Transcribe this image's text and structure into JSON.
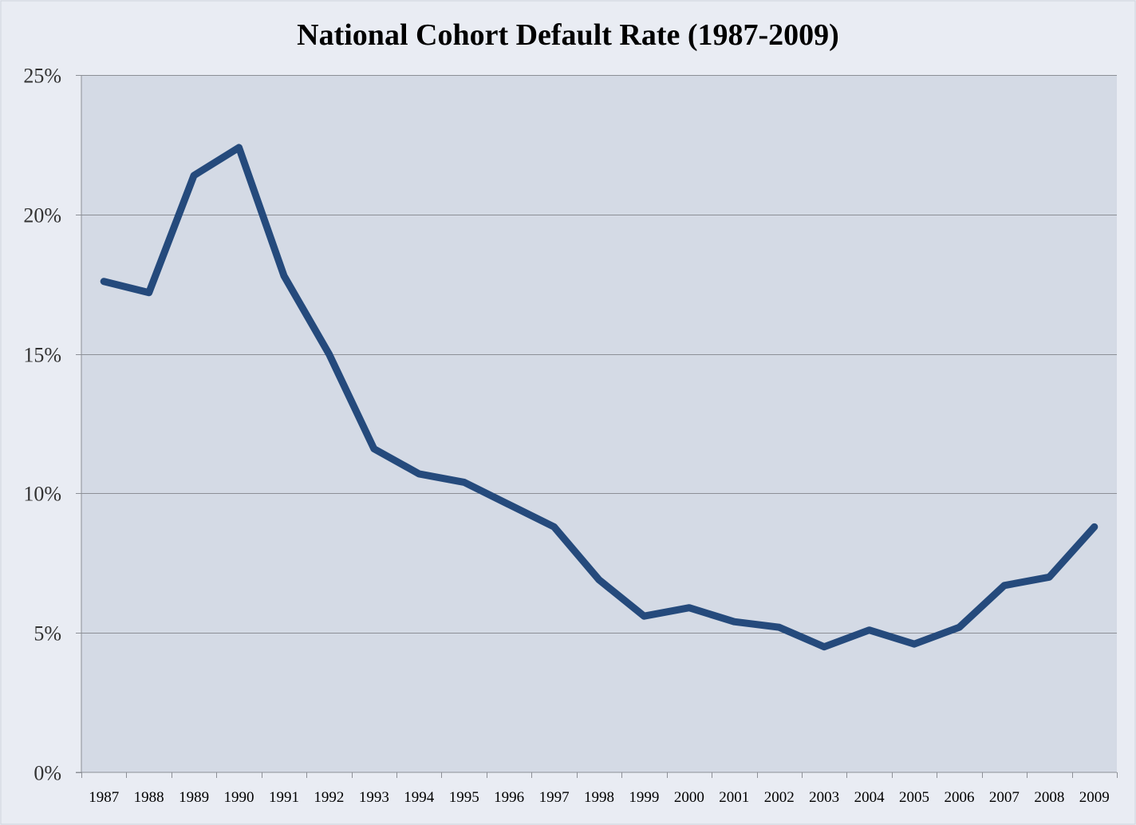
{
  "chart_data": {
    "type": "line",
    "title": "National Cohort Default Rate (1987-2009)",
    "xlabel": "",
    "ylabel": "",
    "categories": [
      "1987",
      "1988",
      "1989",
      "1990",
      "1991",
      "1992",
      "1993",
      "1994",
      "1995",
      "1996",
      "1997",
      "1998",
      "1999",
      "2000",
      "2001",
      "2002",
      "2003",
      "2004",
      "2005",
      "2006",
      "2007",
      "2008",
      "2009"
    ],
    "series": [
      {
        "name": "National Cohort Default Rate",
        "values": [
          17.6,
          17.2,
          21.4,
          22.4,
          17.8,
          15.0,
          11.6,
          10.7,
          10.4,
          9.6,
          8.8,
          6.9,
          5.6,
          5.9,
          5.4,
          5.2,
          4.5,
          5.1,
          4.6,
          5.2,
          6.7,
          7.0,
          8.8
        ]
      }
    ],
    "ylim": [
      0,
      25
    ],
    "yticks": [
      0,
      5,
      10,
      15,
      20,
      25
    ],
    "ytick_labels": [
      "0%",
      "5%",
      "10%",
      "15%",
      "20%",
      "25%"
    ],
    "grid": true,
    "legend": "none",
    "colors": {
      "line": "#254a7c",
      "plot_bg": "#d4dae5",
      "page_bg": "#e9ecf3",
      "grid": "#8c8f96"
    }
  }
}
